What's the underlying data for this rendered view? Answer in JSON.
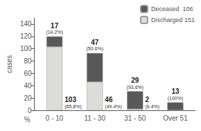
{
  "chart_data": {
    "type": "bar",
    "stacked": true,
    "categories": [
      "0 - 10",
      "11 - 30",
      "31 - 50",
      "Over 51"
    ],
    "series": [
      {
        "name": "Discharged 151",
        "color": "#dcdcd8",
        "values": [
          103,
          46,
          2,
          0
        ],
        "value_labels": [
          "103",
          "46",
          "2",
          null
        ],
        "share_labels": [
          "(85.8%)",
          "(49.4%)",
          "(6.4%)",
          null
        ]
      },
      {
        "name": "Deceased  106",
        "color": "#595959",
        "values": [
          17,
          47,
          29,
          13
        ],
        "data_labels": true,
        "share_labels": [
          "(14.2%)",
          "(50.6%)",
          "(93.6%)",
          "(100%)"
        ]
      }
    ],
    "ylabel": "cases",
    "xlabel": "%",
    "ylim": [
      0,
      150
    ],
    "yticks": [
      0,
      20,
      40,
      60,
      80,
      100,
      120,
      140
    ],
    "grid": false,
    "legend": "upper right"
  }
}
